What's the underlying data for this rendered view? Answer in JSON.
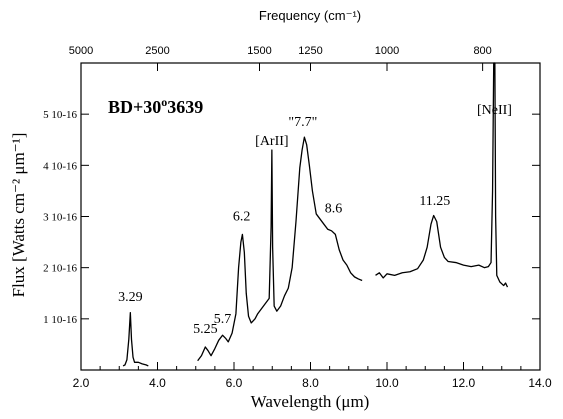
{
  "chart_data": {
    "type": "line",
    "title": "BD+30°3639",
    "title_parts": {
      "prefix": "BD+30",
      "sup": "o",
      "suffix": "3639"
    },
    "xlabel": "Wavelength (μm)",
    "ylabel": "Flux [Watts cm⁻² μm⁻¹]",
    "top_xlabel": "Frequency (cm⁻¹)",
    "xlim": [
      2.0,
      14.0
    ],
    "ylim": [
      0,
      6e-16
    ],
    "x_ticks": [
      {
        "value": 2.0,
        "label": "2.0"
      },
      {
        "value": 4.0,
        "label": "4.0"
      },
      {
        "value": 6.0,
        "label": "6.0"
      },
      {
        "value": 8.0,
        "label": "8.0"
      },
      {
        "value": 10.0,
        "label": "10.0"
      },
      {
        "value": 12.0,
        "label": "12.0"
      },
      {
        "value": 14.0,
        "label": "14.0"
      }
    ],
    "y_ticks": [
      {
        "value": 1e-16,
        "label": "1 10-16"
      },
      {
        "value": 2e-16,
        "label": "2 10-16"
      },
      {
        "value": 3e-16,
        "label": "3 10-16"
      },
      {
        "value": 4e-16,
        "label": "4 10-16"
      },
      {
        "value": 5e-16,
        "label": "5 10-16"
      }
    ],
    "top_ticks": [
      {
        "value": 5000,
        "label": "5000"
      },
      {
        "value": 2500,
        "label": "2500"
      },
      {
        "value": 1500,
        "label": "1500"
      },
      {
        "value": 1250,
        "label": "1250"
      },
      {
        "value": 1000,
        "label": "1000"
      },
      {
        "value": 800,
        "label": "800"
      }
    ],
    "annotations": [
      {
        "text": "3.29",
        "x": 3.29,
        "y": 1.35e-16
      },
      {
        "text": "5.25",
        "x": 5.25,
        "y": 7.2e-17
      },
      {
        "text": "5.7",
        "x": 5.7,
        "y": 9.2e-17
      },
      {
        "text": "6.2",
        "x": 6.2,
        "y": 2.92e-16
      },
      {
        "text": "[ArII]",
        "x": 6.99,
        "y": 4.4e-16
      },
      {
        "text": "\"7.7\"",
        "x": 7.8,
        "y": 4.77e-16
      },
      {
        "text": "8.6",
        "x": 8.6,
        "y": 3.08e-16
      },
      {
        "text": "11.25",
        "x": 11.25,
        "y": 3.22e-16
      },
      {
        "text": "[NeII]",
        "x": 12.81,
        "y": 5e-16
      }
    ],
    "series": [
      {
        "segments": [
          [
            [
              3.1,
              8e-18
            ],
            [
              3.15,
              1e-17
            ],
            [
              3.2,
              2e-17
            ],
            [
              3.25,
              6e-17
            ],
            [
              3.29,
              1.12e-16
            ],
            [
              3.32,
              6e-17
            ],
            [
              3.36,
              2.5e-17
            ],
            [
              3.4,
              1.5e-17
            ],
            [
              3.5,
              1.5e-17
            ],
            [
              3.6,
              1.2e-17
            ],
            [
              3.7,
              1e-17
            ],
            [
              3.76,
              8e-18
            ]
          ],
          [
            [
              5.05,
              1.8e-17
            ],
            [
              5.15,
              2.8e-17
            ],
            [
              5.25,
              4.5e-17
            ],
            [
              5.32,
              3.8e-17
            ],
            [
              5.4,
              2.8e-17
            ],
            [
              5.5,
              4.2e-17
            ],
            [
              5.6,
              5.8e-17
            ],
            [
              5.7,
              6.8e-17
            ],
            [
              5.78,
              6.2e-17
            ],
            [
              5.85,
              5.5e-17
            ],
            [
              5.95,
              7.2e-17
            ],
            [
              6.05,
              1.1e-16
            ],
            [
              6.12,
              2e-16
            ],
            [
              6.18,
              2.5e-16
            ],
            [
              6.22,
              2.65e-16
            ],
            [
              6.27,
              2.3e-16
            ],
            [
              6.32,
              1.5e-16
            ],
            [
              6.38,
              1.05e-16
            ],
            [
              6.45,
              9.2e-17
            ],
            [
              6.55,
              1e-16
            ],
            [
              6.62,
              1.1e-16
            ],
            [
              6.72,
              1.2e-16
            ],
            [
              6.82,
              1.3e-16
            ],
            [
              6.92,
              1.4e-16
            ],
            [
              6.97,
              2.8e-16
            ],
            [
              6.99,
              4.3e-16
            ],
            [
              7.01,
              2.4e-16
            ],
            [
              7.05,
              1.25e-16
            ],
            [
              7.12,
              1.15e-16
            ],
            [
              7.22,
              1.25e-16
            ],
            [
              7.32,
              1.45e-16
            ],
            [
              7.42,
              1.6e-16
            ],
            [
              7.52,
              2e-16
            ],
            [
              7.62,
              2.9e-16
            ],
            [
              7.72,
              3.95e-16
            ],
            [
              7.78,
              4.3e-16
            ],
            [
              7.84,
              4.55e-16
            ],
            [
              7.9,
              4.4e-16
            ],
            [
              7.97,
              4e-16
            ],
            [
              8.05,
              3.5e-16
            ],
            [
              8.15,
              3.05e-16
            ],
            [
              8.25,
              2.95e-16
            ],
            [
              8.35,
              2.85e-16
            ],
            [
              8.45,
              2.75e-16
            ],
            [
              8.55,
              2.72e-16
            ],
            [
              8.65,
              2.65e-16
            ],
            [
              8.75,
              2.35e-16
            ],
            [
              8.85,
              2.15e-16
            ],
            [
              8.95,
              2.05e-16
            ],
            [
              9.05,
              1.9e-16
            ],
            [
              9.15,
              1.82e-16
            ],
            [
              9.25,
              1.78e-16
            ],
            [
              9.35,
              1.75e-16
            ]
          ],
          [
            [
              9.7,
              1.85e-16
            ],
            [
              9.8,
              1.9e-16
            ],
            [
              9.9,
              1.8e-16
            ],
            [
              10.0,
              1.88e-16
            ],
            [
              10.2,
              1.85e-16
            ],
            [
              10.4,
              1.9e-16
            ],
            [
              10.6,
              1.92e-16
            ],
            [
              10.8,
              1.98e-16
            ],
            [
              10.95,
              2.15e-16
            ],
            [
              11.05,
              2.4e-16
            ],
            [
              11.15,
              2.85e-16
            ],
            [
              11.22,
              3.02e-16
            ],
            [
              11.3,
              2.9e-16
            ],
            [
              11.4,
              2.4e-16
            ],
            [
              11.5,
              2.2e-16
            ],
            [
              11.6,
              2.12e-16
            ],
            [
              11.8,
              2.1e-16
            ],
            [
              12.0,
              2.05e-16
            ],
            [
              12.2,
              2.02e-16
            ],
            [
              12.4,
              2.05e-16
            ],
            [
              12.55,
              2e-16
            ],
            [
              12.65,
              2.02e-16
            ],
            [
              12.72,
              2.1e-16
            ],
            [
              12.76,
              3.5e-16
            ],
            [
              12.79,
              6e-16
            ],
            [
              12.82,
              6e-16
            ],
            [
              12.84,
              3e-16
            ],
            [
              12.87,
              1.85e-16
            ],
            [
              12.95,
              1.72e-16
            ],
            [
              13.05,
              1.65e-16
            ],
            [
              13.1,
              1.7e-16
            ],
            [
              13.15,
              1.62e-16
            ]
          ]
        ]
      }
    ]
  }
}
